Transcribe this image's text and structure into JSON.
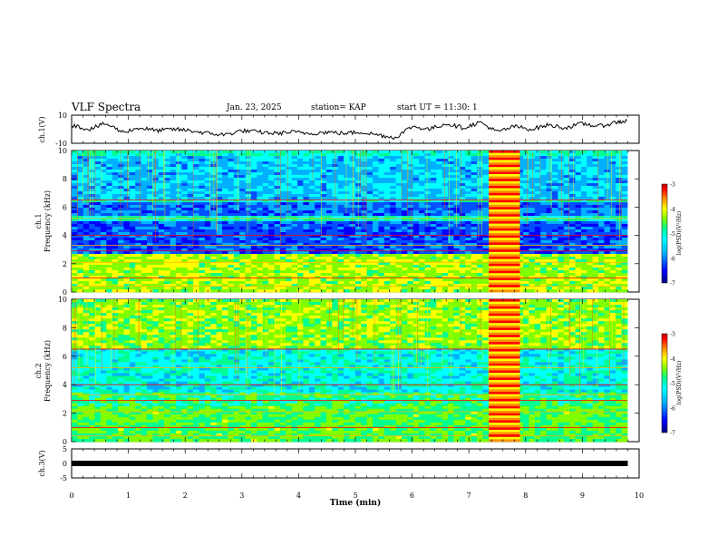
{
  "header": {
    "title": "VLF Spectra",
    "date": "Jan. 23, 2025",
    "station": "station= KAP",
    "start": "start UT = 11:30: 1"
  },
  "colors": {
    "colormap": [
      "#000080",
      "#0000ff",
      "#0050ff",
      "#00b0ff",
      "#00ffff",
      "#00ff90",
      "#7fff00",
      "#ffff00",
      "#ff9000",
      "#ff0000",
      "#c00000",
      "#000000"
    ]
  },
  "chart_data": [
    {
      "type": "line",
      "ylabel": "ch.1(V)",
      "ylim": [
        -10,
        10
      ],
      "yticks": [
        "10",
        "-10"
      ],
      "xlim": [
        0,
        10
      ],
      "description_series": "ch.1 waveform amplitude vs time",
      "x": [
        0,
        0.3,
        0.6,
        0.9,
        1.2,
        1.5,
        1.8,
        2.1,
        2.4,
        2.7,
        3.0,
        3.3,
        3.6,
        3.9,
        4.2,
        4.5,
        4.8,
        5.1,
        5.4,
        5.7,
        6.0,
        6.3,
        6.6,
        6.9,
        7.2,
        7.5,
        7.8,
        8.1,
        8.4,
        8.7,
        9.0,
        9.3,
        9.6,
        9.8
      ],
      "y": [
        3,
        0,
        4,
        -2,
        1,
        -1,
        0,
        -1,
        -3,
        -4,
        -1,
        -2,
        -3,
        -2,
        -3,
        -2,
        -3,
        -2,
        -4,
        -6,
        2,
        0,
        4,
        1,
        5,
        -2,
        2,
        0,
        3,
        1,
        4,
        2,
        5,
        6
      ]
    },
    {
      "type": "heatmap",
      "ylabel": "ch.1\nFrequency (kHz)",
      "ylim": [
        0,
        10
      ],
      "yticks": [
        "0",
        "2",
        "4",
        "6",
        "8",
        "10"
      ],
      "xlim": [
        0,
        10
      ],
      "colorbar": {
        "label": "log(PSD)(V²/Hz)",
        "range": [
          -7,
          -3
        ],
        "ticks": [
          "-3",
          "-4",
          "-5",
          "-6",
          "-7"
        ]
      }
    },
    {
      "type": "heatmap",
      "ylabel": "ch.2\nFrequency (kHz)",
      "ylim": [
        0,
        10
      ],
      "yticks": [
        "0",
        "2",
        "4",
        "6",
        "8",
        "10"
      ],
      "xlim": [
        0,
        10
      ],
      "colorbar": {
        "label": "log(PSD)(V²/Hz)",
        "range": [
          -7,
          -3
        ],
        "ticks": [
          "-3",
          "-4",
          "-5",
          "-6",
          "-7"
        ]
      }
    },
    {
      "type": "line",
      "ylabel": "ch.3(V)",
      "ylim": [
        -5,
        5
      ],
      "yticks": [
        "5",
        "0",
        "-5"
      ],
      "xlim": [
        0,
        10
      ],
      "x": [
        0,
        9.8
      ],
      "y": [
        0,
        0
      ]
    }
  ],
  "xaxis": {
    "label": "Time (min)",
    "ticks": [
      "0",
      "1",
      "2",
      "3",
      "4",
      "5",
      "6",
      "7",
      "8",
      "9",
      "10"
    ]
  }
}
